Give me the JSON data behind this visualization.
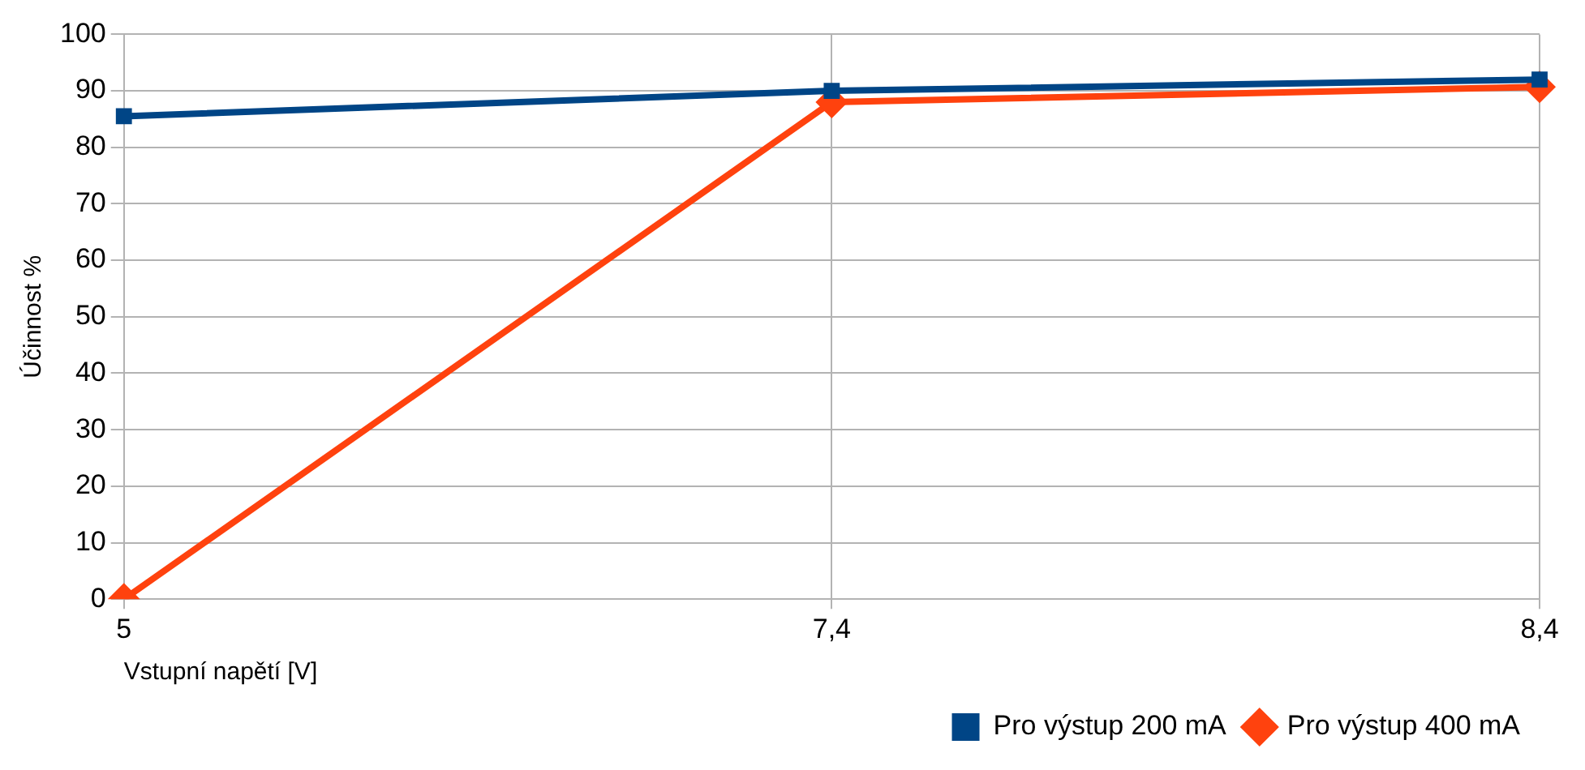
{
  "chart_data": {
    "type": "line",
    "xlabel": "Vstupní napětí [V]",
    "ylabel": "Účinnost %",
    "categories": [
      "5",
      "7,4",
      "8,4"
    ],
    "series": [
      {
        "name": "Pro výstup 200 mA",
        "color": "#004586",
        "values": [
          85.5,
          90,
          92
        ],
        "marker": "square"
      },
      {
        "name": "Pro výstup 400 mA",
        "color": "#ff420e",
        "values": [
          0,
          88,
          90.7
        ],
        "marker": "diamond"
      }
    ],
    "ylim": [
      0,
      100
    ],
    "yticks": [
      0,
      10,
      20,
      30,
      40,
      50,
      60,
      70,
      80,
      90,
      100
    ],
    "grid": true,
    "legend": "bottom right",
    "line_style": "solid"
  }
}
